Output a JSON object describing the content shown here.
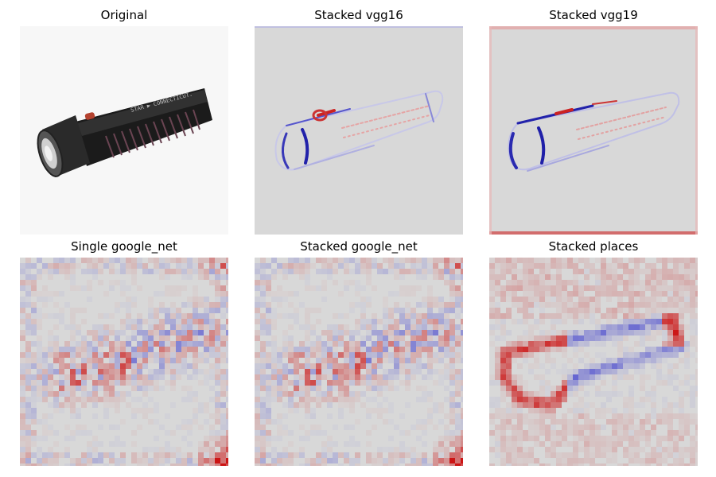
{
  "figure": {
    "panels": [
      {
        "title": "Original"
      },
      {
        "title": "Stacked vgg16"
      },
      {
        "title": "Stacked vgg19"
      },
      {
        "title": "Single google_net"
      },
      {
        "title": "Stacked google_net"
      },
      {
        "title": "Stacked places"
      }
    ]
  },
  "flashlight_label": "STAR ▶ CONNECTICUT.",
  "colors": {
    "map_background": "#d8d8d8",
    "positive": "#cc1f1f",
    "negative": "#2c2cc8",
    "image_background": "#f7f7f7"
  }
}
